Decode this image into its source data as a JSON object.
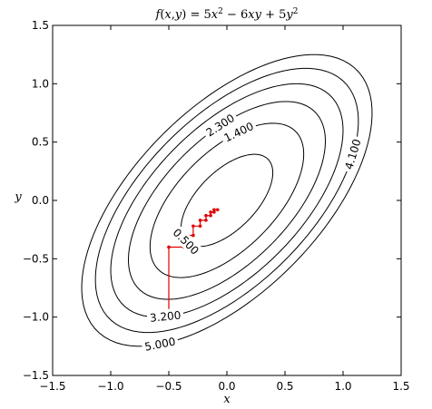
{
  "chart_data": {
    "type": "contour",
    "title": "f(x,y) = 5x² − 6xy + 5y²",
    "xlabel": "x",
    "ylabel": "y",
    "xlim": [
      -1.5,
      1.5
    ],
    "ylim": [
      -1.5,
      1.5
    ],
    "xticks": [
      -1.5,
      -1.0,
      -0.5,
      0.0,
      0.5,
      1.0,
      1.5
    ],
    "yticks": [
      -1.5,
      -1.0,
      -0.5,
      0.0,
      0.5,
      1.0,
      1.5
    ],
    "xtick_labels": [
      "−1.5",
      "−1.0",
      "−0.5",
      "0.0",
      "0.5",
      "1.0",
      "1.5"
    ],
    "ytick_labels": [
      "−1.5",
      "−1.0",
      "−0.5",
      "0.0",
      "0.5",
      "1.0",
      "1.5"
    ],
    "function": {
      "a": 5,
      "b": -6,
      "c": 5
    },
    "levels": [
      0.5,
      1.4,
      2.3,
      3.2,
      4.1,
      5.0
    ],
    "contour_labels": [
      {
        "text": "0.500",
        "level": 0.5,
        "angle_deg": 225
      },
      {
        "text": "1.400",
        "level": 1.4,
        "angle_deg": 80
      },
      {
        "text": "2.300",
        "level": 2.3,
        "angle_deg": 95
      },
      {
        "text": "3.200",
        "level": 3.2,
        "angle_deg": 242
      },
      {
        "text": "4.100",
        "level": 4.1,
        "angle_deg": 20
      },
      {
        "text": "5.000",
        "level": 5.0,
        "angle_deg": 245
      }
    ],
    "descent_path": {
      "color": "#e00000",
      "points": [
        [
          -0.5,
          -1.0
        ],
        [
          -0.5,
          -0.4
        ],
        [
          -0.37,
          -0.4
        ],
        [
          -0.37,
          -0.3
        ],
        [
          -0.29,
          -0.3
        ],
        [
          -0.29,
          -0.22
        ],
        [
          -0.23,
          -0.22
        ],
        [
          -0.23,
          -0.17
        ],
        [
          -0.18,
          -0.17
        ],
        [
          -0.18,
          -0.13
        ],
        [
          -0.14,
          -0.13
        ],
        [
          -0.14,
          -0.1
        ],
        [
          -0.11,
          -0.1
        ],
        [
          -0.11,
          -0.08
        ],
        [
          -0.08,
          -0.08
        ]
      ]
    },
    "grid": false,
    "legend": "none"
  }
}
